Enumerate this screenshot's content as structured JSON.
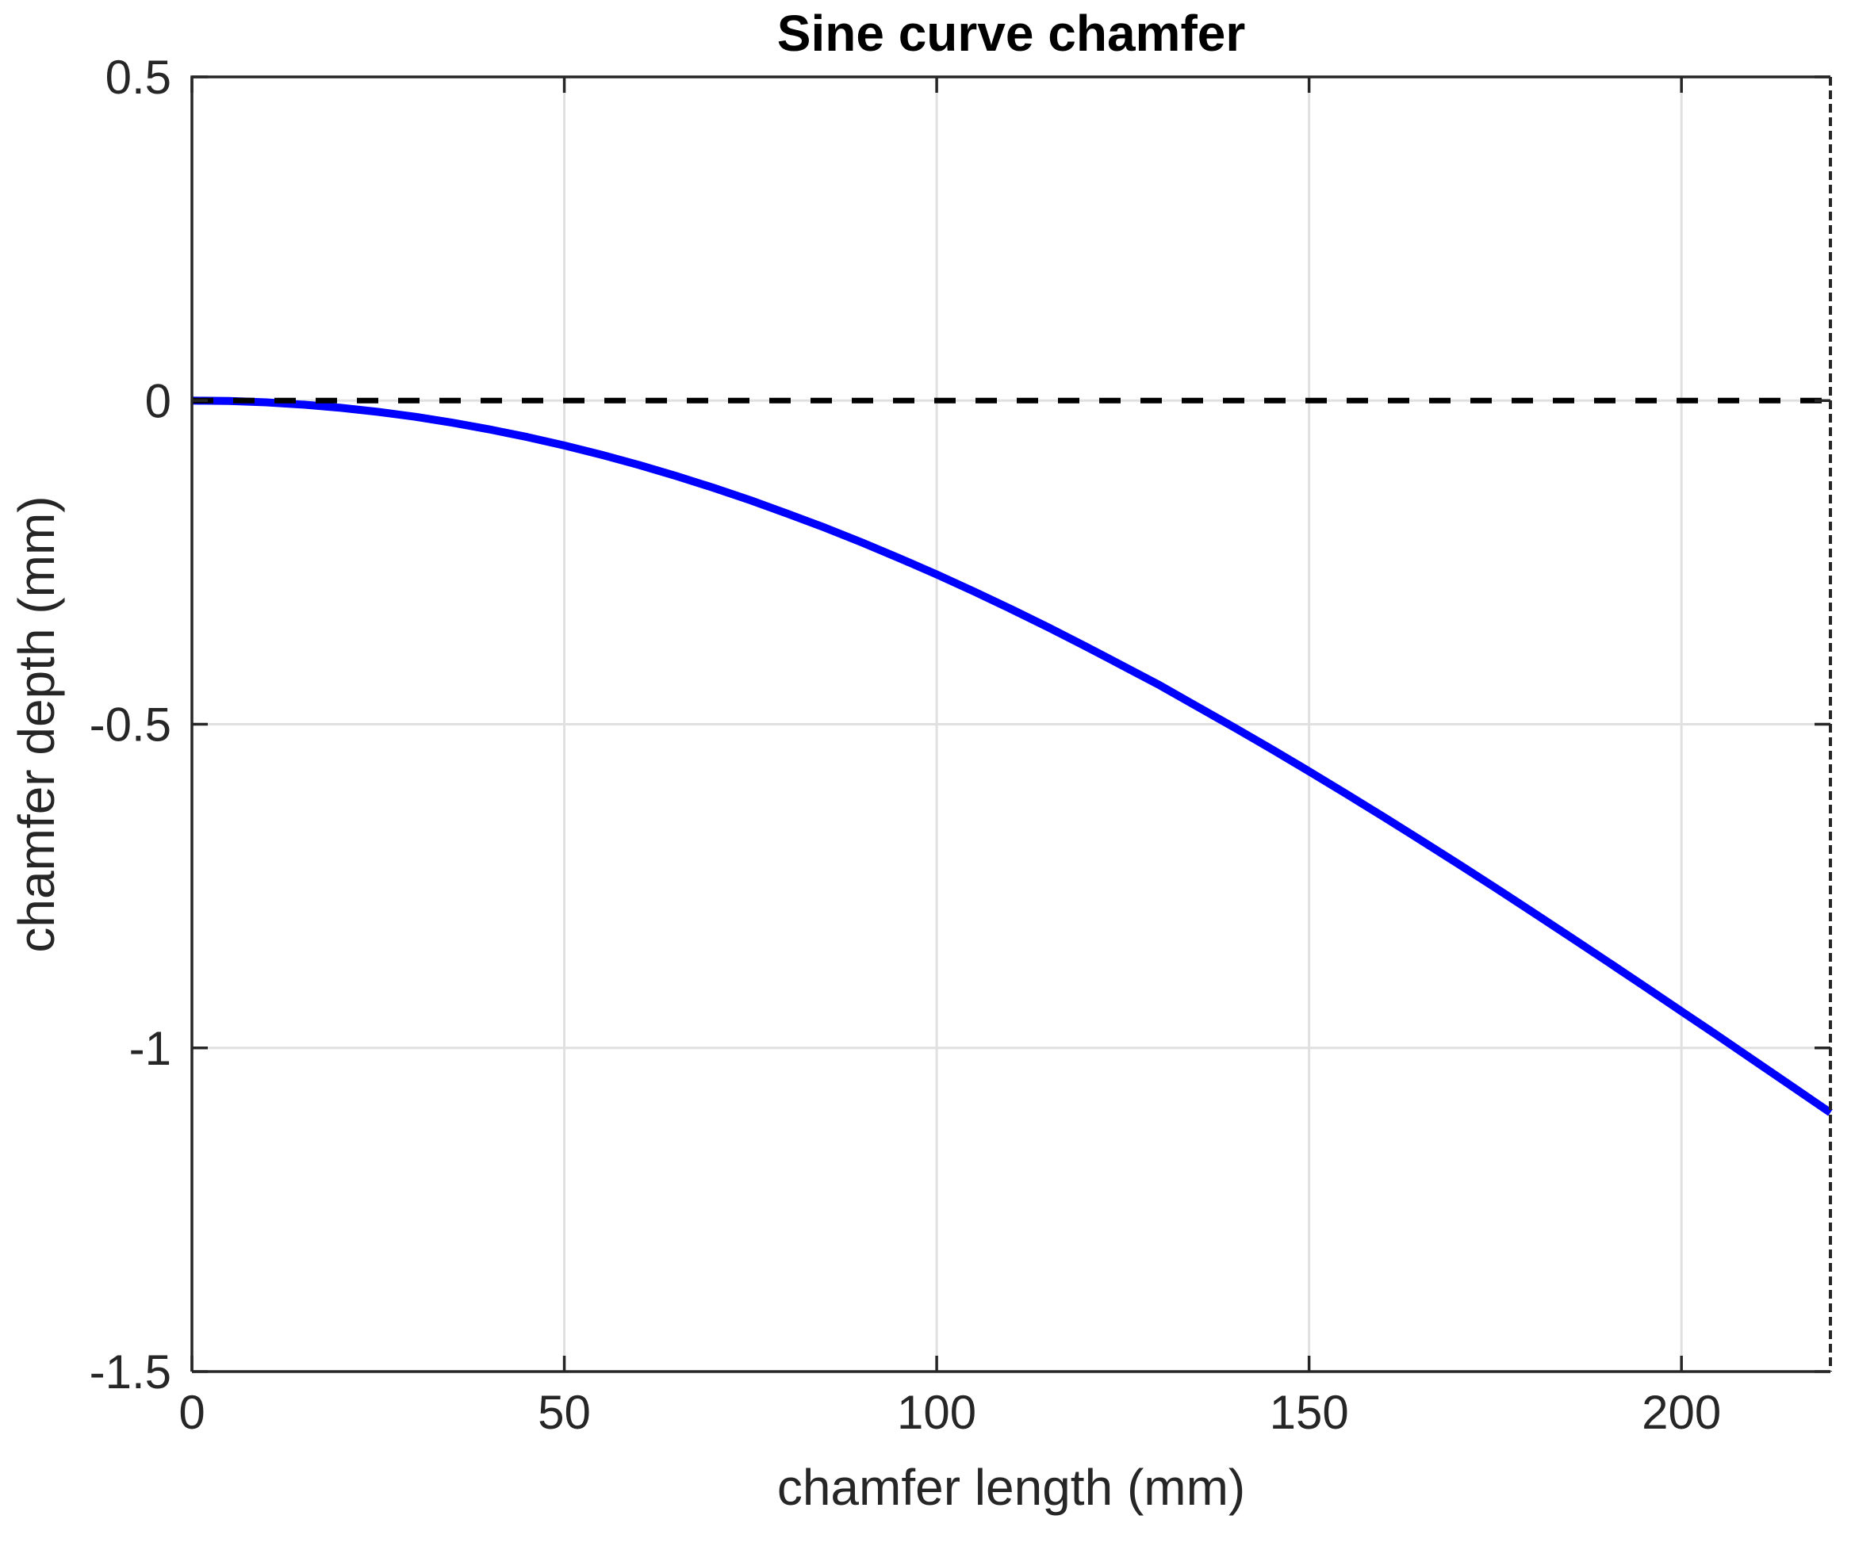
{
  "chart_data": {
    "type": "line",
    "title": "Sine curve chamfer",
    "xlabel": "chamfer length (mm)",
    "ylabel": "chamfer depth (mm)",
    "xlim": [
      0,
      220
    ],
    "ylim": [
      -1.5,
      0.5
    ],
    "x_ticks": [
      0,
      50,
      100,
      150,
      200
    ],
    "x_tick_labels": [
      "0",
      "50",
      "100",
      "150",
      "200"
    ],
    "y_ticks": [
      0.5,
      0,
      -0.5,
      -1,
      -1.5
    ],
    "y_tick_labels": [
      "0.5",
      "0",
      "-0.5",
      "-1",
      "-1.5"
    ],
    "grid": true,
    "legend": "none",
    "series": [
      {
        "name": "chamfer-depth-curve",
        "color": "#0000ff",
        "line_width": 10,
        "style": "solid",
        "x": [
          0,
          5,
          10,
          15,
          20,
          25,
          30,
          35,
          40,
          45,
          50,
          55,
          60,
          65,
          70,
          75,
          80,
          85,
          90,
          95,
          100,
          105,
          110,
          115,
          120,
          125,
          130,
          135,
          140,
          145,
          150,
          155,
          160,
          165,
          170,
          175,
          180,
          185,
          190,
          195,
          200,
          205,
          210,
          215,
          220
        ],
        "y": [
          0,
          -0.0007,
          -0.0028,
          -0.0063,
          -0.0112,
          -0.0175,
          -0.0251,
          -0.0342,
          -0.0446,
          -0.0563,
          -0.0694,
          -0.0837,
          -0.0994,
          -0.1164,
          -0.1346,
          -0.154,
          -0.175,
          -0.1964,
          -0.2194,
          -0.2435,
          -0.2687,
          -0.2949,
          -0.3222,
          -0.3504,
          -0.3797,
          -0.4098,
          -0.4401,
          -0.4728,
          -0.5053,
          -0.5387,
          -0.5728,
          -0.6076,
          -0.643,
          -0.679,
          -0.7156,
          -0.7526,
          -0.7901,
          -0.828,
          -0.8662,
          -0.9047,
          -0.9435,
          -0.982,
          -1.0215,
          -1.0607,
          -1.1
        ]
      },
      {
        "name": "zero-reference-line",
        "color": "#000000",
        "line_width": 7,
        "style": "dashed",
        "x": [
          0,
          220
        ],
        "y": [
          0,
          0
        ]
      }
    ],
    "colors": {
      "background": "#ffffff",
      "grid": "#e0e0e0",
      "axis": "#262626",
      "tick_text": "#262626",
      "title_text": "#000000",
      "series_blue": "#0000ff",
      "zero_line": "#000000"
    }
  }
}
